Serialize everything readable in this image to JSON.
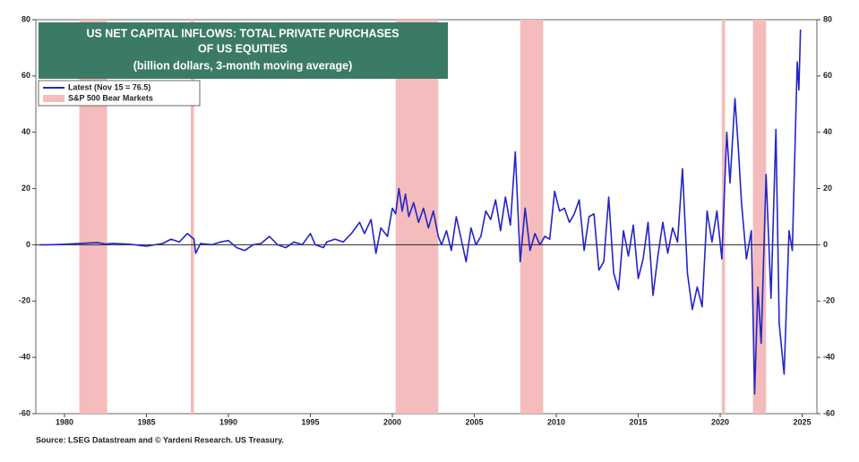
{
  "chart_data": {
    "type": "line",
    "title": [
      "US NET CAPITAL INFLOWS: TOTAL PRIVATE PURCHASES",
      "OF US EQUITIES"
    ],
    "subtitle": "(billion dollars, 3-month moving average)",
    "source": "Source: LSEG Datastream and © Yardeni Research. US Treasury.",
    "x": [
      1978.5,
      1979,
      1980,
      1981,
      1982,
      1982.5,
      1983,
      1984,
      1985,
      1986,
      1986.5,
      1987,
      1987.5,
      1987.9,
      1988,
      1988.3,
      1989,
      1989.5,
      1990,
      1990.5,
      1991,
      1991.5,
      1992,
      1992.5,
      1993,
      1993.5,
      1994,
      1994.5,
      1995,
      1995.3,
      1995.8,
      1996,
      1996.5,
      1997,
      1997.5,
      1998,
      1998.3,
      1998.7,
      1999,
      1999.3,
      1999.7,
      2000,
      2000.2,
      2000.4,
      2000.6,
      2000.8,
      2001,
      2001.3,
      2001.6,
      2001.9,
      2002.2,
      2002.5,
      2002.8,
      2003,
      2003.3,
      2003.6,
      2003.9,
      2004.2,
      2004.5,
      2004.8,
      2005.1,
      2005.4,
      2005.7,
      2006,
      2006.3,
      2006.6,
      2006.9,
      2007.2,
      2007.5,
      2007.8,
      2008.1,
      2008.4,
      2008.7,
      2009,
      2009.3,
      2009.6,
      2009.9,
      2010.2,
      2010.5,
      2010.8,
      2011.1,
      2011.4,
      2011.7,
      2012,
      2012.3,
      2012.6,
      2012.9,
      2013.2,
      2013.5,
      2013.8,
      2014.1,
      2014.4,
      2014.7,
      2015,
      2015.3,
      2015.6,
      2015.9,
      2016.2,
      2016.5,
      2016.8,
      2017.1,
      2017.4,
      2017.7,
      2018,
      2018.3,
      2018.6,
      2018.9,
      2019.2,
      2019.5,
      2019.8,
      2020.1,
      2020.4,
      2020.6,
      2020.9,
      2021.1,
      2021.3,
      2021.6,
      2021.9,
      2022.1,
      2022.3,
      2022.5,
      2022.8,
      2023.1,
      2023.4,
      2023.6,
      2023.9,
      2024.2,
      2024.4,
      2024.7,
      2024.8,
      2024.9
    ],
    "series": [
      {
        "name": "Latest (Nov 15 = 76.5)",
        "color": "#2424c8",
        "values": [
          0,
          0,
          0.2,
          0.5,
          0.8,
          0.3,
          0.5,
          0.2,
          -0.5,
          0.5,
          2,
          1,
          4,
          2,
          -3,
          0.5,
          0,
          1,
          1.5,
          -1,
          -2,
          0,
          0.5,
          3,
          0,
          -1,
          1,
          0,
          4,
          0,
          -1,
          1,
          2,
          1,
          4,
          8,
          4,
          9,
          -3,
          6,
          3,
          13,
          11,
          20,
          12,
          18,
          10,
          15,
          8,
          13,
          6,
          12,
          3,
          0,
          5,
          -2,
          10,
          2,
          -6,
          6,
          0,
          3,
          12,
          9,
          16,
          5,
          17,
          7,
          33,
          -6,
          13,
          -2,
          4,
          0,
          3,
          2,
          19,
          12,
          13,
          8,
          11,
          16,
          -2,
          10,
          11,
          -9,
          -6,
          17,
          -10,
          -16,
          5,
          -4,
          7,
          -12,
          -5,
          8,
          -18,
          -4,
          8,
          -3,
          6,
          1,
          27,
          -10,
          -23,
          -15,
          -22,
          12,
          1,
          12,
          -5,
          40,
          22,
          52,
          35,
          15,
          -5,
          5,
          -53,
          -15,
          -35,
          25,
          -19,
          41,
          -28,
          -46,
          5,
          -2,
          65,
          55,
          76.5
        ]
      }
    ],
    "shaded_regions": {
      "name": "S&P 500 Bear Markets",
      "color": "#f4bcbc",
      "ranges": [
        [
          1980.9,
          1982.6
        ],
        [
          1987.7,
          1987.9
        ],
        [
          2000.2,
          2002.8
        ],
        [
          2007.8,
          2009.2
        ],
        [
          2020.1,
          2020.3
        ],
        [
          2022.0,
          2022.8
        ]
      ]
    },
    "hline": 0,
    "xlim": [
      1978.25,
      2025.9
    ],
    "xticks": [
      1980,
      1985,
      1990,
      1995,
      2000,
      2005,
      2010,
      2015,
      2020,
      2025
    ],
    "ylim": [
      -60,
      80
    ],
    "yticks": [
      -60,
      -40,
      -20,
      0,
      20,
      40,
      60,
      80
    ],
    "y2lim": [
      -60,
      80
    ],
    "y2ticks": [
      -60,
      -40,
      -20,
      0,
      20,
      40,
      60,
      80
    ],
    "grid": false
  }
}
